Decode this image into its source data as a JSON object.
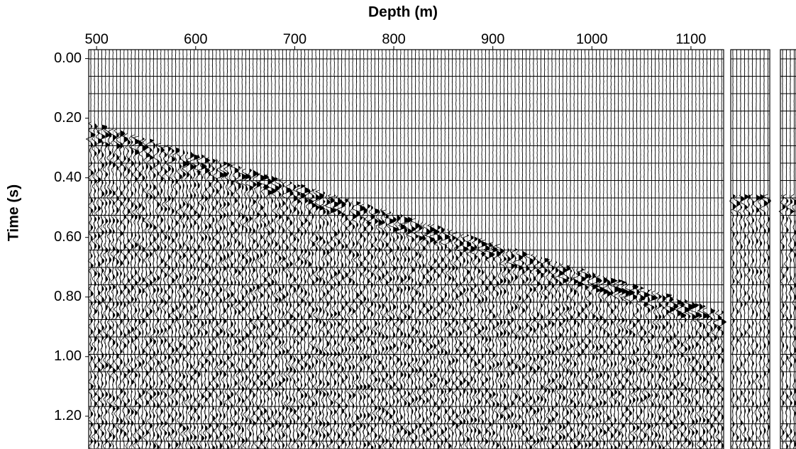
{
  "chart_data": {
    "type": "seismic",
    "x_label": "Depth (m)",
    "y_label": "Time (s)",
    "xlim": [
      492,
      1133
    ],
    "xticks": [
      500,
      600,
      700,
      800,
      900,
      1000,
      1100
    ],
    "ylim": [
      -0.03,
      1.31
    ],
    "yticks": [
      {
        "value": 0,
        "label": "0.00"
      },
      {
        "value": 0.2,
        "label": "0.20"
      },
      {
        "value": 0.4,
        "label": "0.40"
      },
      {
        "value": 0.6,
        "label": "0.60"
      },
      {
        "value": 0.8,
        "label": "0.80"
      },
      {
        "value": 1.0,
        "label": "1.00"
      },
      {
        "value": 1.2,
        "label": "1.20"
      }
    ],
    "y_inverted": true,
    "color": "#000000"
  }
}
